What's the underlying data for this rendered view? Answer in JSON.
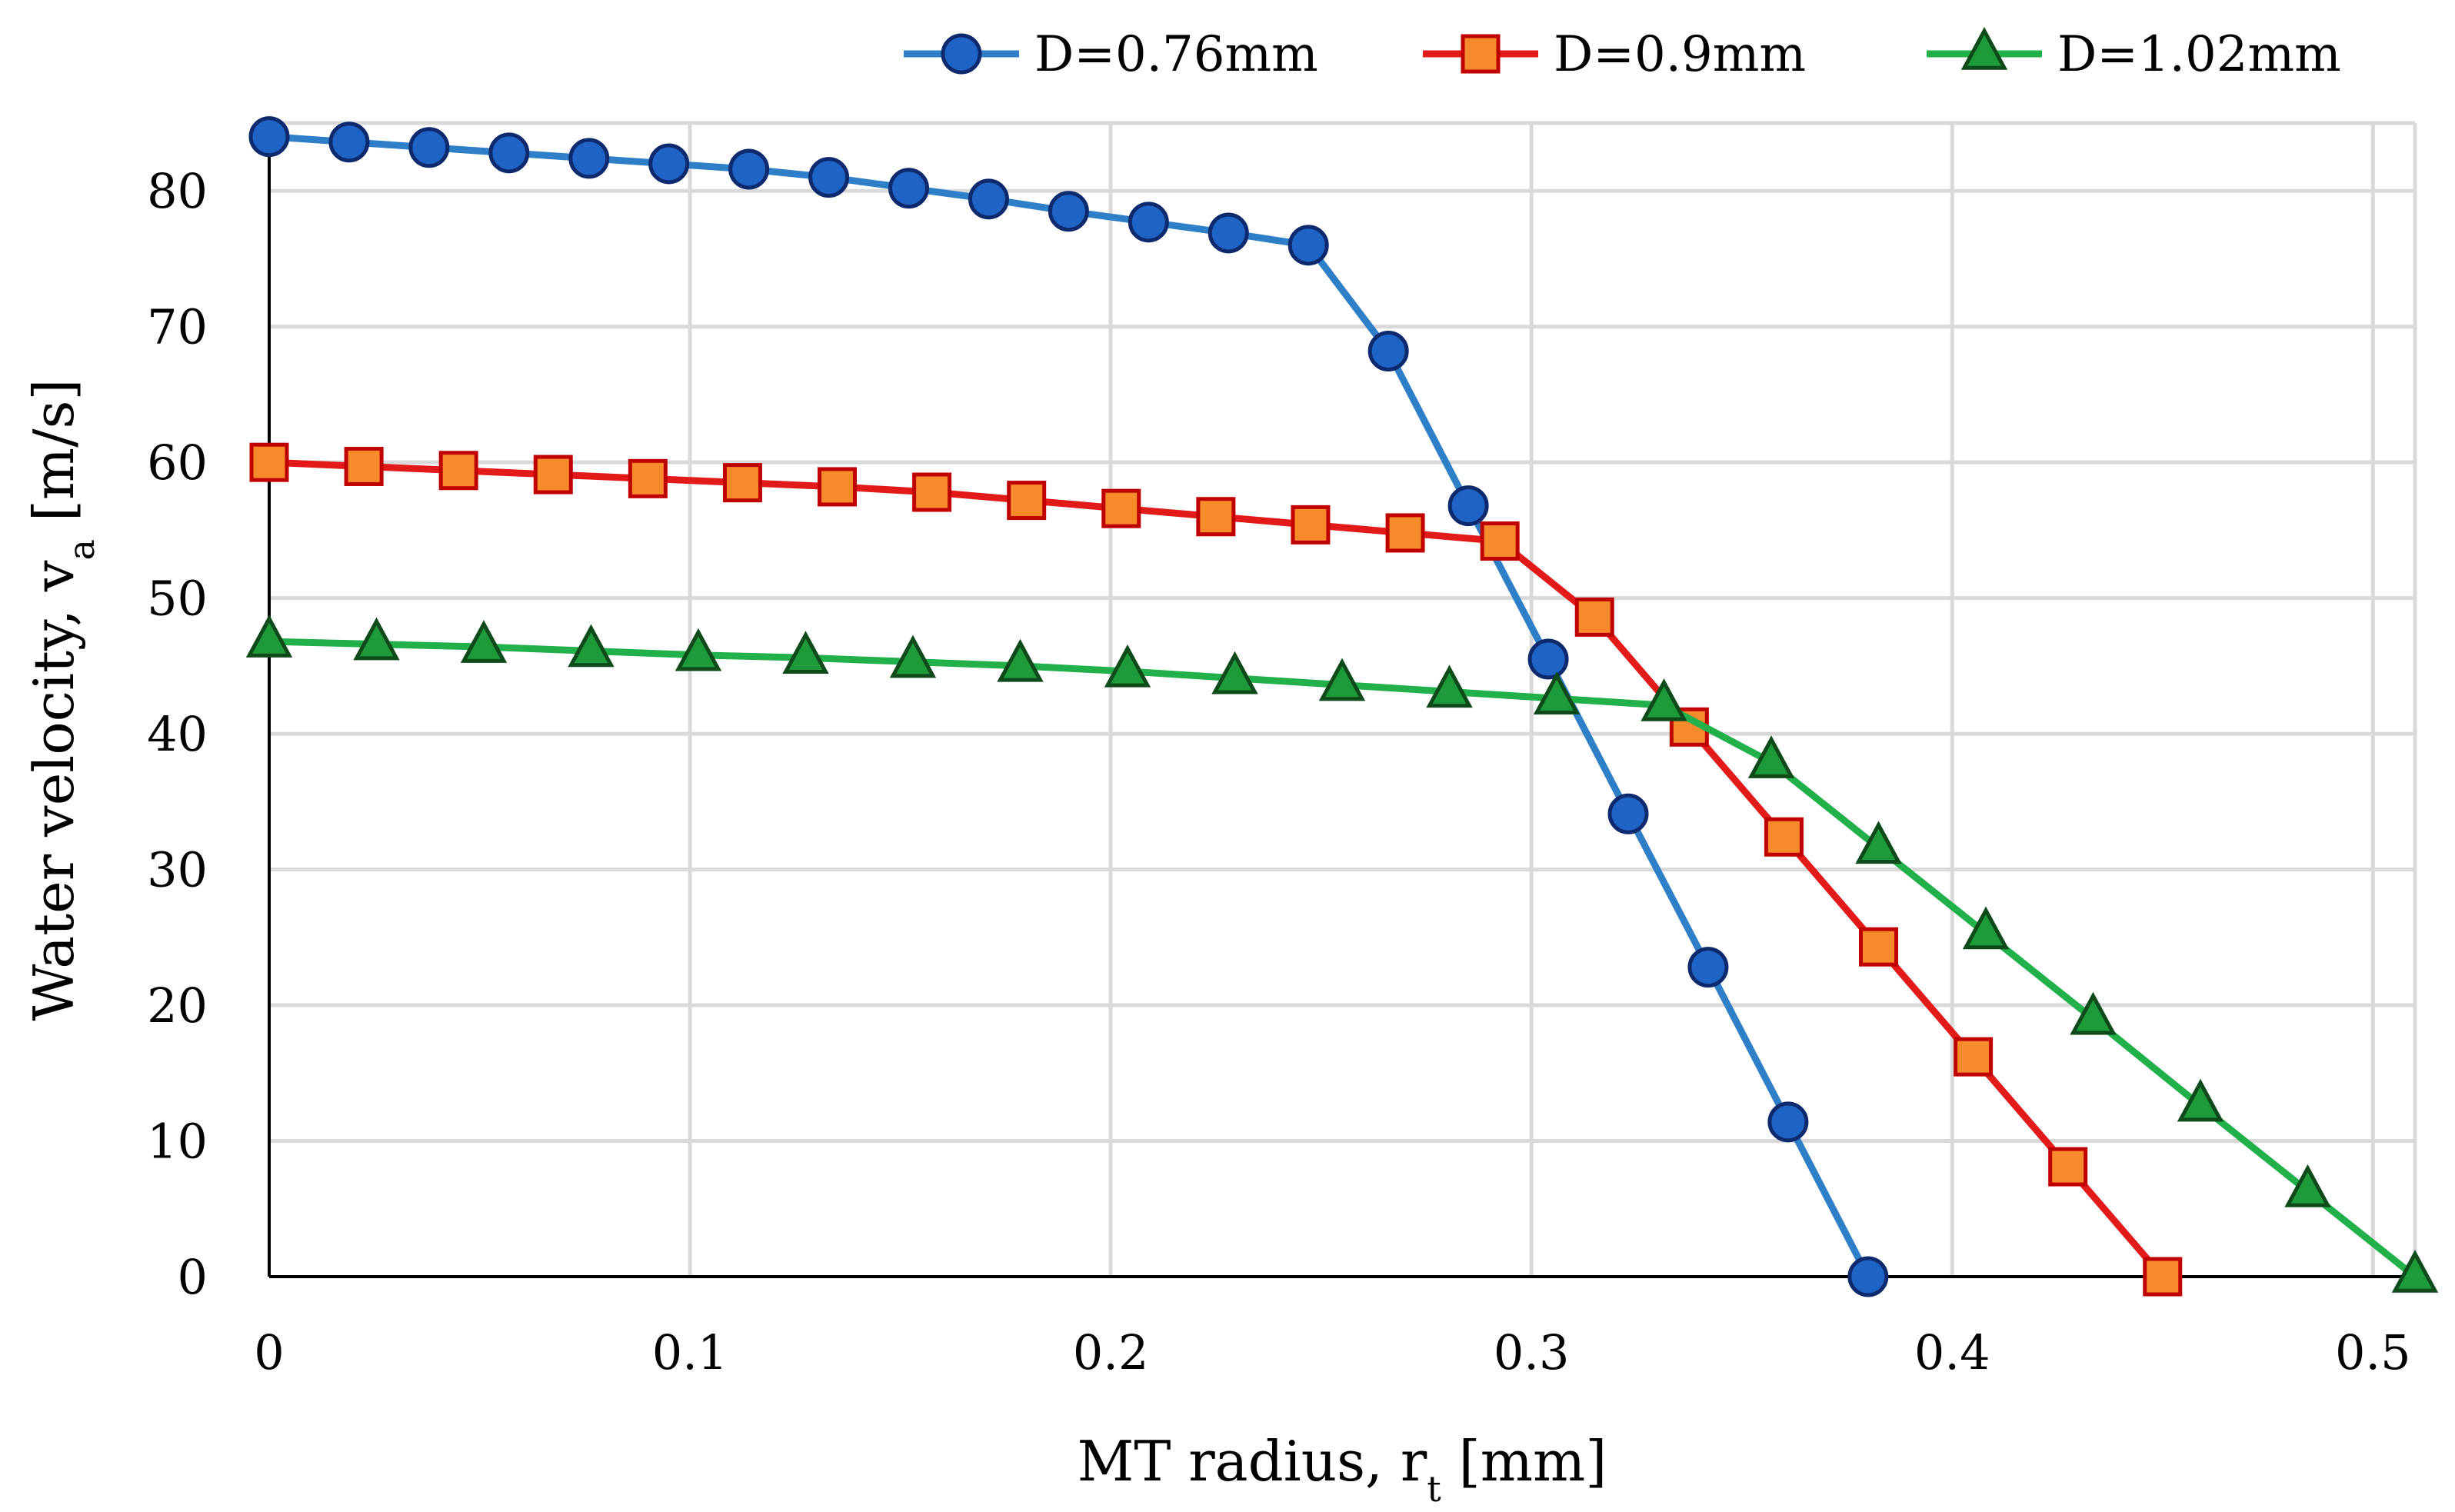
{
  "chart_data": {
    "type": "line",
    "title": "",
    "xlabel": "MT radius, r",
    "xlabel_sub": "t",
    "xlabel_unit": " [mm]",
    "ylabel": "Water velocity, v",
    "ylabel_sub": "a",
    "ylabel_unit": " [m/s]",
    "xlim": [
      0,
      0.51
    ],
    "ylim": [
      0,
      85
    ],
    "xticks": [
      0,
      0.1,
      0.2,
      0.3,
      0.4,
      0.5
    ],
    "xtick_labels": [
      "0",
      "0.1",
      "0.2",
      "0.3",
      "0.4",
      "0.5"
    ],
    "yticks": [
      0,
      10,
      20,
      30,
      40,
      50,
      60,
      70,
      80
    ],
    "ytick_labels": [
      "0",
      "10",
      "20",
      "30",
      "40",
      "50",
      "60",
      "70",
      "80"
    ],
    "grid": true,
    "legend_position": "top",
    "series": [
      {
        "name": "D=0.76mm",
        "marker": "circle",
        "line_color": "#2F7FC8",
        "marker_fill": "#1F63C4",
        "marker_stroke": "#0E2A6E",
        "x": [
          0,
          0.019,
          0.038,
          0.057,
          0.076,
          0.095,
          0.114,
          0.133,
          0.152,
          0.171,
          0.19,
          0.209,
          0.228,
          0.247,
          0.266,
          0.285,
          0.304,
          0.323,
          0.342,
          0.361,
          0.38
        ],
        "y": [
          84.0,
          83.6,
          83.2,
          82.8,
          82.4,
          82.0,
          81.6,
          81.0,
          80.2,
          79.4,
          78.5,
          77.7,
          76.9,
          76.0,
          68.2,
          56.8,
          45.5,
          34.1,
          22.8,
          11.4,
          0.0
        ]
      },
      {
        "name": "D=0.9mm",
        "marker": "square",
        "line_color": "#E21A1A",
        "marker_fill": "#F78A2A",
        "marker_stroke": "#C00000",
        "x": [
          0,
          0.0225,
          0.045,
          0.0675,
          0.09,
          0.1125,
          0.135,
          0.1575,
          0.18,
          0.2025,
          0.225,
          0.2475,
          0.27,
          0.2925,
          0.315,
          0.3375,
          0.36,
          0.3825,
          0.405,
          0.4275,
          0.45
        ],
        "y": [
          60.0,
          59.7,
          59.4,
          59.1,
          58.8,
          58.5,
          58.2,
          57.8,
          57.2,
          56.6,
          56.0,
          55.4,
          54.8,
          54.2,
          48.6,
          40.5,
          32.4,
          24.3,
          16.2,
          8.1,
          0.0
        ]
      },
      {
        "name": "D=1.02mm",
        "marker": "triangle",
        "line_color": "#22B04A",
        "marker_fill": "#1E9A3A",
        "marker_stroke": "#0E4A1A",
        "x": [
          0,
          0.0255,
          0.051,
          0.0765,
          0.102,
          0.1275,
          0.153,
          0.1785,
          0.204,
          0.2295,
          0.255,
          0.2805,
          0.306,
          0.3315,
          0.357,
          0.3825,
          0.408,
          0.4335,
          0.459,
          0.4845,
          0.51
        ],
        "y": [
          46.8,
          46.6,
          46.4,
          46.1,
          45.8,
          45.6,
          45.3,
          45.0,
          44.6,
          44.1,
          43.6,
          43.1,
          42.6,
          42.1,
          37.9,
          31.6,
          25.3,
          19.0,
          12.6,
          6.3,
          0.0
        ]
      }
    ]
  }
}
